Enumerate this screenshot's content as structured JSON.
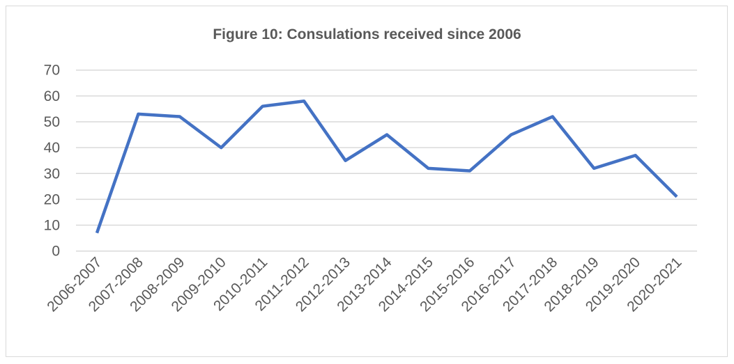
{
  "chart_data": {
    "type": "line",
    "title": "Figure 10: Consulations received since 2006",
    "xlabel": "",
    "ylabel": "",
    "categories": [
      "2006-2007",
      "2007-2008",
      "2008-2009",
      "2009-2010",
      "2010-2011",
      "2011-2012",
      "2012-2013",
      "2013-2014",
      "2014-2015",
      "2015-2016",
      "2016-2017",
      "2017-2018",
      "2018-2019",
      "2019-2020",
      "2020-2021"
    ],
    "series": [
      {
        "values": [
          7,
          53,
          52,
          40,
          56,
          58,
          35,
          45,
          32,
          31,
          45,
          52,
          32,
          37,
          21
        ],
        "color": "#4472c4"
      }
    ],
    "ylim": [
      0,
      70
    ],
    "yticks": [
      0,
      10,
      20,
      30,
      40,
      50,
      60,
      70
    ],
    "grid": true,
    "legend": "none"
  }
}
